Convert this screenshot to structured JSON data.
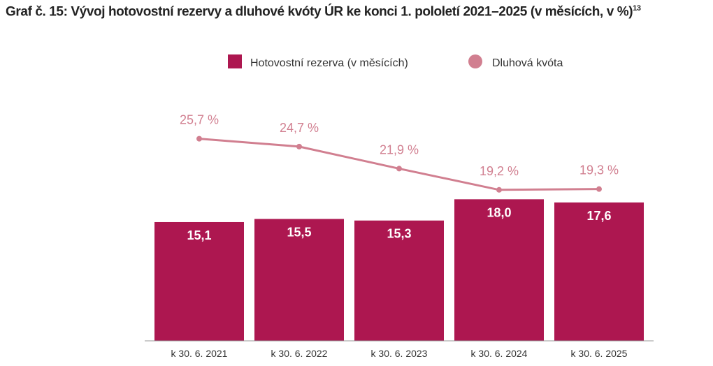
{
  "title": "Graf č. 15: Vývoj hotovostní rezervy a dluhové kvóty ÚR ke konci 1. pololetí 2021–2025 (v měsících, v %)",
  "footnote": "13",
  "chart_data": {
    "type": "bar+line",
    "categories": [
      "k 30. 6. 2021",
      "k 30. 6. 2022",
      "k 30. 6. 2023",
      "k 30. 6. 2024",
      "k 30. 6. 2025"
    ],
    "series": [
      {
        "name": "Hotovostní rezerva (v měsících)",
        "type": "bar",
        "color": "#ad1750",
        "values": [
          15.1,
          15.5,
          15.3,
          18.0,
          17.6
        ],
        "labels": [
          "15,1",
          "15,5",
          "15,3",
          "18,0",
          "17,6"
        ]
      },
      {
        "name": "Dluhová kvóta",
        "type": "line",
        "color": "#d17f90",
        "values": [
          25.7,
          24.7,
          21.9,
          19.2,
          19.3
        ],
        "labels": [
          "25,7 %",
          "24,7 %",
          "21,9 %",
          "19,2 %",
          "19,3 %"
        ]
      }
    ],
    "ylim": [
      0,
      26
    ],
    "grid": false,
    "legend": "top-center"
  }
}
